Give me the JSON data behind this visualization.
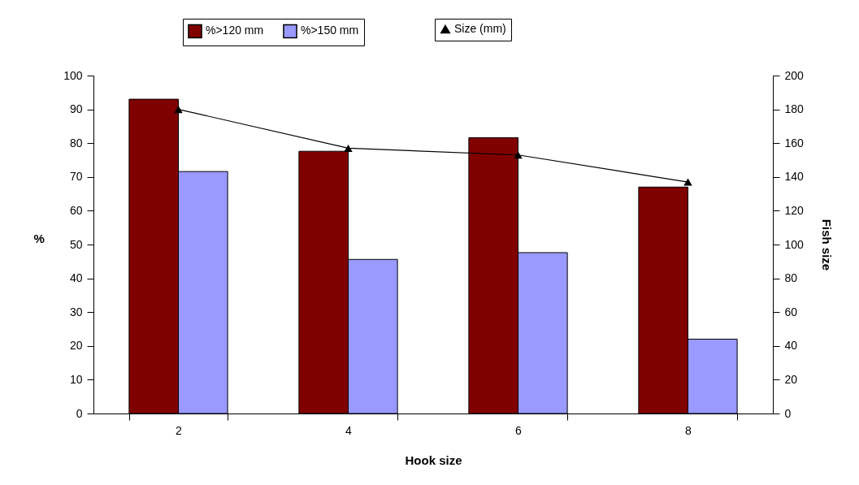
{
  "chart_data": {
    "type": "bar",
    "categories": [
      "2",
      "4",
      "6",
      "8"
    ],
    "series": [
      {
        "name": "%>120 mm",
        "color": "#800000",
        "values": [
          93,
          77.6,
          81.6,
          67
        ]
      },
      {
        "name": "%>150 mm",
        "color": "#9999ff",
        "values": [
          71.6,
          45.6,
          47.6,
          22
        ]
      },
      {
        "name": "Size (mm)",
        "type": "line",
        "axis": "y2",
        "color": "#000000",
        "values": [
          180,
          157,
          153,
          137
        ]
      }
    ],
    "xlabel": "Hook size",
    "ylabel": "%",
    "y2label": "Fish size",
    "ylim": [
      0,
      100
    ],
    "yticks": [
      0,
      10,
      20,
      30,
      40,
      50,
      60,
      70,
      80,
      90,
      100
    ],
    "y2lim": [
      0,
      200
    ],
    "y2ticks": [
      0,
      20,
      40,
      60,
      80,
      100,
      120,
      140,
      160,
      180,
      200
    ],
    "marker": "triangle",
    "legend": "top"
  }
}
